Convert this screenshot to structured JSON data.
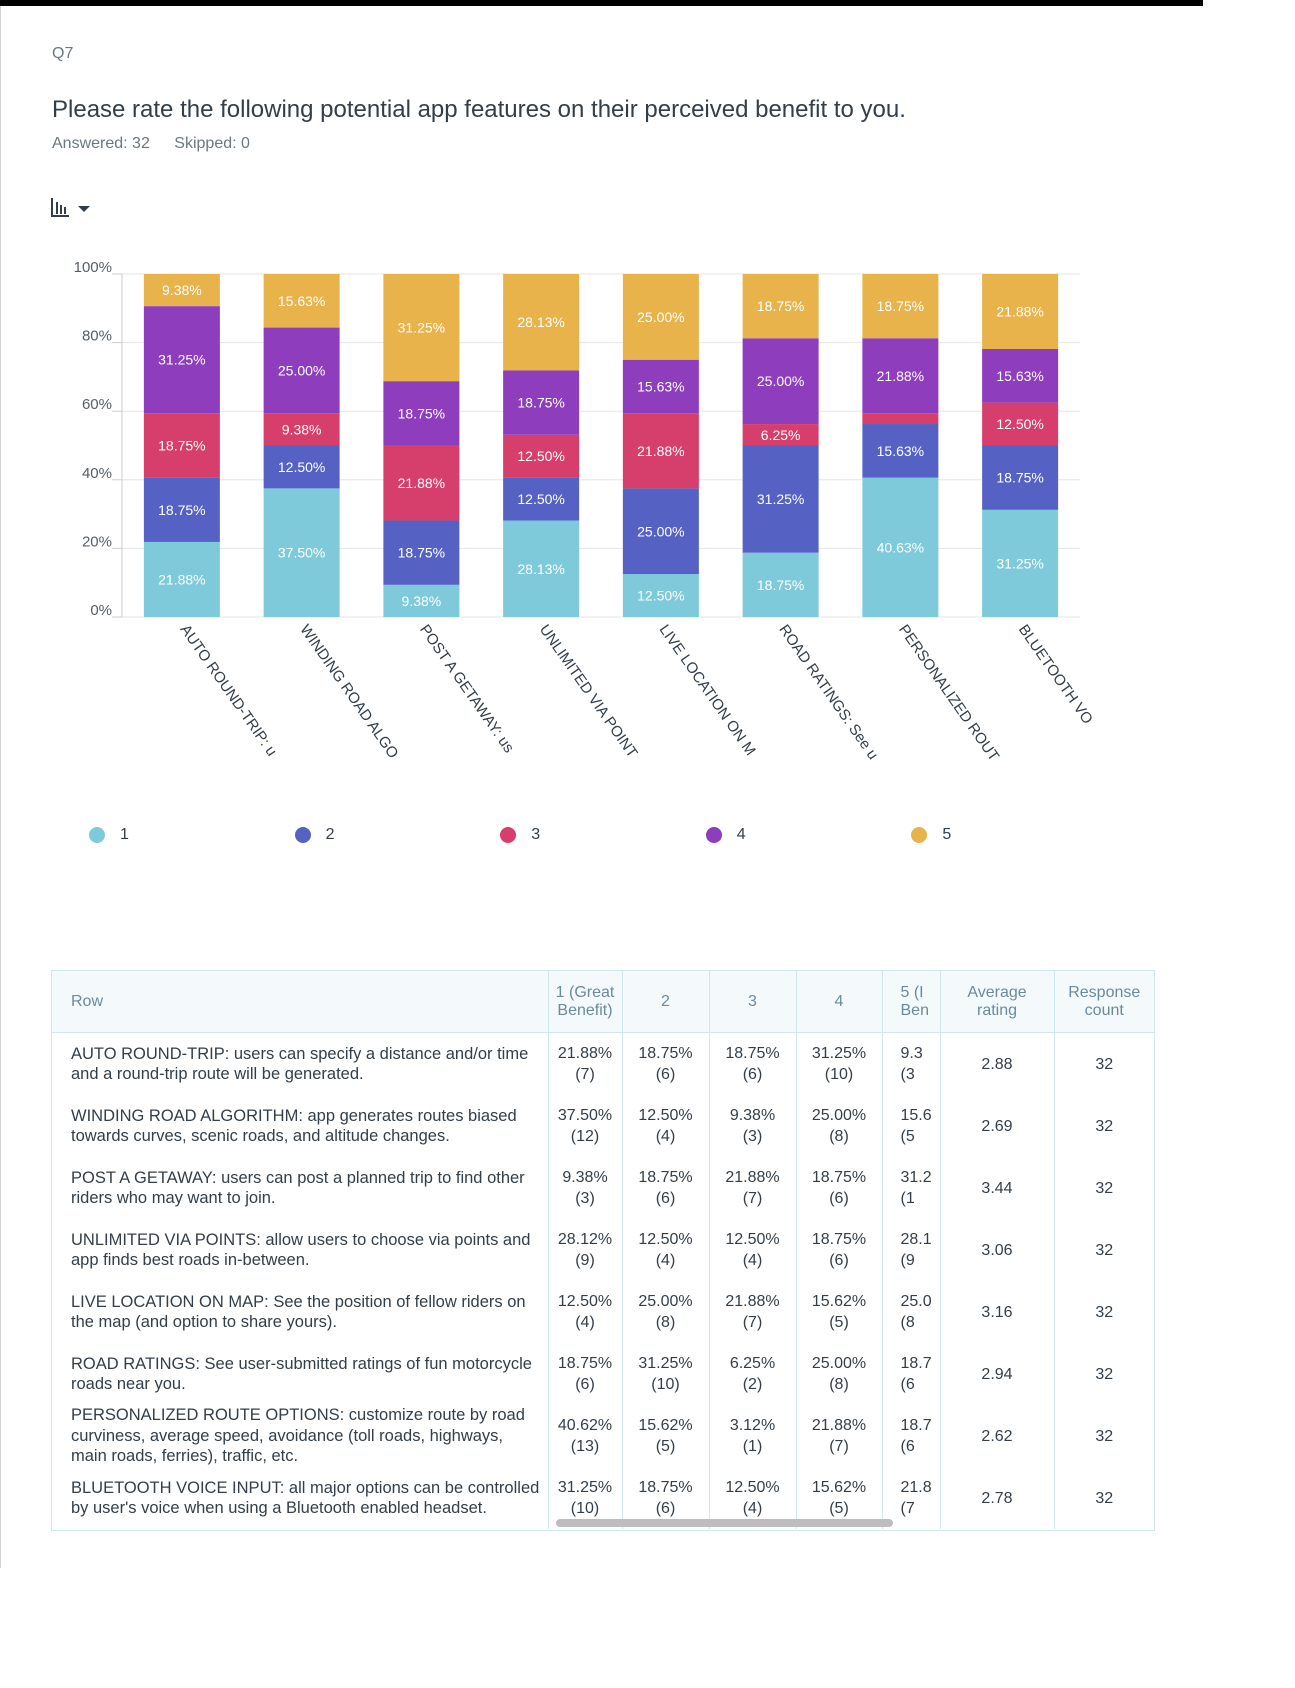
{
  "question": {
    "number": "Q7",
    "title": "Please rate the following potential app features on their perceived benefit to you.",
    "answered": "Answered: 32",
    "skipped": "Skipped: 0",
    "chart_type_icon": "bar-chart-icon"
  },
  "chart_data": {
    "type": "bar",
    "stacked": true,
    "title": "",
    "xlabel": "",
    "ylabel": "",
    "ylim": [
      0,
      100
    ],
    "y_ticks": [
      "0%",
      "20%",
      "40%",
      "60%",
      "80%",
      "100%"
    ],
    "y_tick_values": [
      0,
      20,
      40,
      60,
      80,
      100
    ],
    "categories": [
      "AUTO ROUND-TRIP: u",
      "WINDING ROAD ALGO",
      "POST A GETAWAY: us",
      "UNLIMITED VIA POINT",
      "LIVE LOCATION ON M",
      "ROAD RATINGS: See u",
      "PERSONALIZED ROUT",
      "BLUETOOTH VO"
    ],
    "series": [
      {
        "name": "1",
        "color": "#7ecadb",
        "values": [
          21.88,
          37.5,
          9.38,
          28.13,
          12.5,
          18.75,
          40.63,
          31.25
        ],
        "labels": [
          "21.88%",
          "37.50%",
          "9.38%",
          "28.13%",
          "12.50%",
          "18.75%",
          "40.63%",
          "31.25%"
        ]
      },
      {
        "name": "2",
        "color": "#5562c4",
        "values": [
          18.75,
          12.5,
          18.75,
          12.5,
          25.0,
          31.25,
          15.63,
          18.75
        ],
        "labels": [
          "18.75%",
          "12.50%",
          "18.75%",
          "12.50%",
          "25.00%",
          "31.25%",
          "15.63%",
          "18.75%"
        ]
      },
      {
        "name": "3",
        "color": "#d63f6c",
        "values": [
          18.75,
          9.38,
          21.88,
          12.5,
          21.88,
          6.25,
          3.12,
          12.5
        ],
        "labels": [
          "18.75%",
          "9.38%",
          "21.88%",
          "12.50%",
          "21.88%",
          "6.25%",
          "",
          "12.50%"
        ]
      },
      {
        "name": "4",
        "color": "#8e3dbd",
        "values": [
          31.25,
          25.0,
          18.75,
          18.75,
          15.63,
          25.0,
          21.88,
          15.63
        ],
        "labels": [
          "31.25%",
          "25.00%",
          "18.75%",
          "18.75%",
          "15.63%",
          "25.00%",
          "21.88%",
          "15.63%"
        ]
      },
      {
        "name": "5",
        "color": "#e8b34a",
        "values": [
          9.38,
          15.63,
          31.25,
          28.13,
          25.0,
          18.75,
          18.75,
          21.88
        ],
        "labels": [
          "9.38%",
          "15.63%",
          "31.25%",
          "28.13%",
          "25.00%",
          "18.75%",
          "18.75%",
          "21.88%"
        ]
      }
    ],
    "legend": "bottom"
  },
  "legend": [
    {
      "label": "1",
      "color": "#7ecadb"
    },
    {
      "label": "2",
      "color": "#5562c4"
    },
    {
      "label": "3",
      "color": "#d63f6c"
    },
    {
      "label": "4",
      "color": "#8e3dbd"
    },
    {
      "label": "5",
      "color": "#e8b34a"
    }
  ],
  "table": {
    "headers": [
      {
        "line1": "Row",
        "line2": ""
      },
      {
        "line1": "1 (Great",
        "line2": "Benefit)"
      },
      {
        "line1": "2",
        "line2": ""
      },
      {
        "line1": "3",
        "line2": ""
      },
      {
        "line1": "4",
        "line2": ""
      },
      {
        "line1": "5 (I",
        "line2": "Ben"
      },
      {
        "line1": "Average",
        "line2": "rating"
      },
      {
        "line1": "Response",
        "line2": "count"
      }
    ],
    "rows": [
      {
        "label": "AUTO ROUND-TRIP: users can specify a distance and/or time and a round-trip route will be generated.",
        "cells": [
          [
            "21.88%",
            "(7)"
          ],
          [
            "18.75%",
            "(6)"
          ],
          [
            "18.75%",
            "(6)"
          ],
          [
            "31.25%",
            "(10)"
          ],
          [
            "9.3",
            "(3"
          ]
        ],
        "average": "2.88",
        "count": "32"
      },
      {
        "label": "WINDING ROAD ALGORITHM: app generates routes biased towards curves, scenic roads, and altitude changes.",
        "cells": [
          [
            "37.50%",
            "(12)"
          ],
          [
            "12.50%",
            "(4)"
          ],
          [
            "9.38%",
            "(3)"
          ],
          [
            "25.00%",
            "(8)"
          ],
          [
            "15.6",
            "(5"
          ]
        ],
        "average": "2.69",
        "count": "32"
      },
      {
        "label": "POST A GETAWAY: users can post a planned trip to find other riders who may want to join.",
        "cells": [
          [
            "9.38%",
            "(3)"
          ],
          [
            "18.75%",
            "(6)"
          ],
          [
            "21.88%",
            "(7)"
          ],
          [
            "18.75%",
            "(6)"
          ],
          [
            "31.2",
            "(1"
          ]
        ],
        "average": "3.44",
        "count": "32"
      },
      {
        "label": "UNLIMITED VIA POINTS: allow users to choose via points and app finds best roads in-between.",
        "cells": [
          [
            "28.12%",
            "(9)"
          ],
          [
            "12.50%",
            "(4)"
          ],
          [
            "12.50%",
            "(4)"
          ],
          [
            "18.75%",
            "(6)"
          ],
          [
            "28.1",
            "(9"
          ]
        ],
        "average": "3.06",
        "count": "32"
      },
      {
        "label": "LIVE LOCATION ON MAP: See the position of fellow riders on the map (and option to share yours).",
        "cells": [
          [
            "12.50%",
            "(4)"
          ],
          [
            "25.00%",
            "(8)"
          ],
          [
            "21.88%",
            "(7)"
          ],
          [
            "15.62%",
            "(5)"
          ],
          [
            "25.0",
            "(8"
          ]
        ],
        "average": "3.16",
        "count": "32"
      },
      {
        "label": "ROAD RATINGS: See user-submitted ratings of fun motorcycle roads near you.",
        "cells": [
          [
            "18.75%",
            "(6)"
          ],
          [
            "31.25%",
            "(10)"
          ],
          [
            "6.25%",
            "(2)"
          ],
          [
            "25.00%",
            "(8)"
          ],
          [
            "18.7",
            "(6"
          ]
        ],
        "average": "2.94",
        "count": "32"
      },
      {
        "label": "PERSONALIZED ROUTE OPTIONS: customize route by road curviness, average speed, avoidance (toll roads, highways, main roads, ferries), traffic, etc.",
        "cells": [
          [
            "40.62%",
            "(13)"
          ],
          [
            "15.62%",
            "(5)"
          ],
          [
            "3.12%",
            "(1)"
          ],
          [
            "21.88%",
            "(7)"
          ],
          [
            "18.7",
            "(6"
          ]
        ],
        "average": "2.62",
        "count": "32"
      },
      {
        "label": "BLUETOOTH VOICE INPUT: all major options can be controlled by user's voice when using a Bluetooth enabled headset.",
        "cells": [
          [
            "31.25%",
            "(10)"
          ],
          [
            "18.75%",
            "(6)"
          ],
          [
            "12.50%",
            "(4)"
          ],
          [
            "15.62%",
            "(5)"
          ],
          [
            "21.8",
            "(7"
          ]
        ],
        "average": "2.78",
        "count": "32"
      }
    ]
  }
}
